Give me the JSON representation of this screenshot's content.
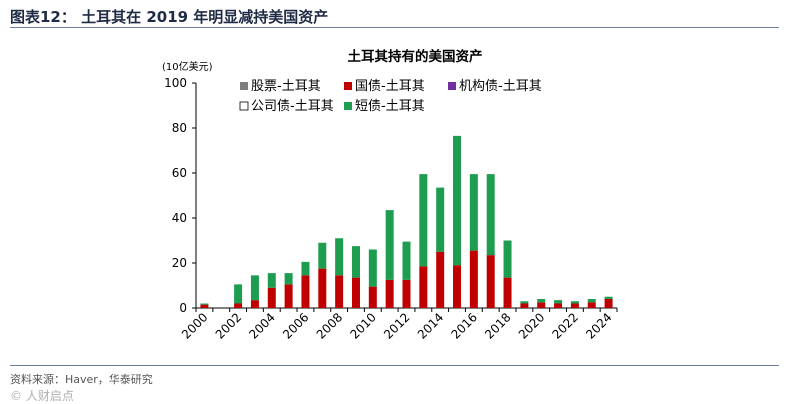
{
  "figure": {
    "title": "图表12： 土耳其在 2019 年明显减持美国资产",
    "source": "资料来源：Haver，华泰研究",
    "watermark": "© 人财启点"
  },
  "chart_data": {
    "type": "bar",
    "stacked": true,
    "title": "土耳其持有的美国资产",
    "unit_label": "(10亿美元)",
    "xlabel": "",
    "ylabel": "",
    "ylim": [
      0,
      100
    ],
    "yticks": [
      0,
      20,
      40,
      60,
      80,
      100
    ],
    "categories": [
      2000,
      2001,
      2002,
      2003,
      2004,
      2005,
      2006,
      2007,
      2008,
      2009,
      2010,
      2011,
      2012,
      2013,
      2014,
      2015,
      2016,
      2017,
      2018,
      2019,
      2020,
      2021,
      2022,
      2023,
      2024
    ],
    "xticks": [
      2000,
      2002,
      2004,
      2006,
      2008,
      2010,
      2012,
      2014,
      2016,
      2018,
      2020,
      2022,
      2024
    ],
    "legend_position": "top-left",
    "series": [
      {
        "name": "股票-土耳其",
        "color": "#7f7f7f",
        "values": [
          0,
          0,
          0,
          0,
          0,
          0,
          0,
          0,
          0,
          0,
          0,
          0,
          0,
          0,
          0,
          0,
          0,
          0,
          0,
          0,
          0,
          0,
          0,
          0,
          0
        ]
      },
      {
        "name": "国债-土耳其",
        "color": "#c00000",
        "values": [
          1.5,
          0,
          2,
          3.5,
          9,
          10.5,
          14.5,
          17.5,
          14.5,
          13.5,
          9.5,
          12.5,
          12.5,
          18.5,
          25,
          19,
          25.5,
          23.5,
          13.5,
          2,
          2.5,
          2,
          2,
          2.5,
          4
        ]
      },
      {
        "name": "机构债-土耳其",
        "color": "#7030a0",
        "values": [
          0,
          0,
          0,
          0,
          0,
          0,
          0,
          0,
          0,
          0,
          0,
          0,
          0,
          0,
          0,
          0,
          0,
          0,
          0,
          0,
          0,
          0,
          0,
          0,
          0
        ]
      },
      {
        "name": "公司债-土耳其",
        "color": "#ffffff",
        "values": [
          0,
          0,
          0,
          0,
          0,
          0,
          0,
          0,
          0,
          0,
          0,
          0,
          0,
          0,
          0,
          0,
          0,
          0,
          0,
          0,
          0,
          0,
          0,
          0,
          0
        ]
      },
      {
        "name": "短债-土耳其",
        "color": "#1e9c4f",
        "values": [
          0.5,
          0,
          8.5,
          11,
          6.5,
          5,
          6,
          11.5,
          16.5,
          14,
          16.5,
          31,
          17,
          41,
          28.5,
          57.5,
          34,
          36,
          16.5,
          1,
          1.5,
          1.5,
          1,
          1.5,
          1
        ]
      }
    ]
  }
}
